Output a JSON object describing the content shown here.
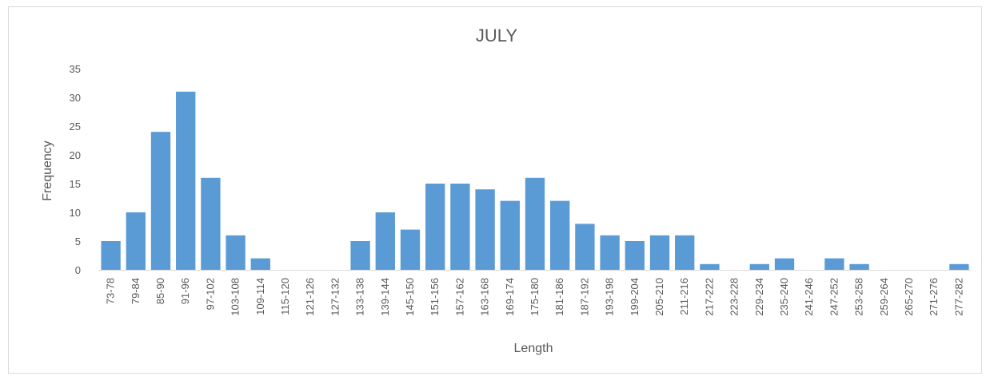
{
  "chart_data": {
    "type": "bar",
    "title": "JULY",
    "xlabel": "Length",
    "ylabel": "Frequency",
    "ylim": [
      0,
      35
    ],
    "yticks": [
      0,
      5,
      10,
      15,
      20,
      25,
      30,
      35
    ],
    "grid": false,
    "legend": "none",
    "bar_color": "#5b9bd5",
    "categories": [
      "73-78",
      "79-84",
      "85-90",
      "91-96",
      "97-102",
      "103-108",
      "109-114",
      "115-120",
      "121-126",
      "127-132",
      "133-138",
      "139-144",
      "145-150",
      "151-156",
      "157-162",
      "163-168",
      "169-174",
      "175-180",
      "181-186",
      "187-192",
      "193-198",
      "199-204",
      "205-210",
      "211-216",
      "217-222",
      "223-228",
      "229-234",
      "235-240",
      "241-246",
      "247-252",
      "253-258",
      "259-264",
      "265-270",
      "271-276",
      "277-282"
    ],
    "values": [
      5,
      10,
      24,
      31,
      16,
      6,
      2,
      0,
      0,
      0,
      5,
      10,
      7,
      15,
      15,
      14,
      12,
      16,
      12,
      8,
      6,
      5,
      6,
      6,
      1,
      0,
      1,
      2,
      0,
      2,
      1,
      0,
      0,
      0,
      1
    ]
  }
}
